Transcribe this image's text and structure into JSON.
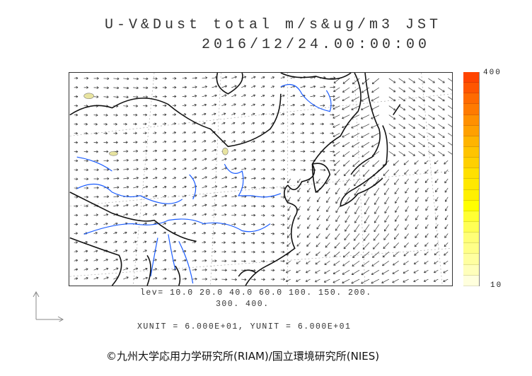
{
  "title": {
    "line1": "U-V&Dust total m/s&ug/m3 JST",
    "line2": "2016/12/24.00:00:00"
  },
  "colorbar": {
    "max_label": "400",
    "min_label": "10",
    "colors": [
      "#ff4400",
      "#ff5500",
      "#ff6a00",
      "#ff7a00",
      "#ff9000",
      "#ffa000",
      "#ffb400",
      "#ffc400",
      "#ffd000",
      "#ffe000",
      "#ffe800",
      "#fff000",
      "#ffff00",
      "#ffff33",
      "#ffff55",
      "#ffff77",
      "#ffff88",
      "#ffffa0",
      "#ffffbb",
      "#ffffdd"
    ]
  },
  "levels": {
    "line1": "lev= 10.0 20.0 40.0 60.0 100. 150. 200.",
    "line2": "300. 400."
  },
  "units": "XUNIT = 6.000E+01, YUNIT = 6.000E+01",
  "credit": "©九州大学応用力学研究所(RIAM)/国立環境研究所(NIES)",
  "colors": {
    "coast": "#111111",
    "river": "#1a5cff",
    "arrow": "#333333",
    "dust": "#e8e4a0"
  }
}
